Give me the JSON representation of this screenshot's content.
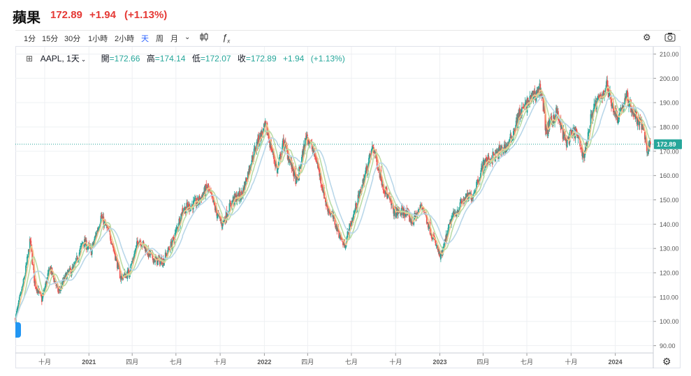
{
  "header": {
    "name": "蘋果",
    "price": "172.89",
    "change": "+1.94",
    "change_pct": "(+1.13%)"
  },
  "toolbar": {
    "timeframes": [
      "1分",
      "15分",
      "30分",
      "1小時",
      "2小時",
      "天",
      "周",
      "月"
    ],
    "active_timeframe": "天",
    "dropdown_icon": "chevron-down-icon",
    "chart_type_icon": "candlestick-icon",
    "indicator_icon": "function-icon",
    "settings_icon": "gear-icon",
    "snapshot_icon": "camera-icon"
  },
  "legend": {
    "symbol": "AAPL, 1天",
    "open_label": "開",
    "open": "=172.66",
    "high_label": "高",
    "high": "=174.14",
    "low_label": "低",
    "low": "=172.07",
    "close_label": "收",
    "close": "=172.89",
    "change": "+1.94",
    "change_pct": "(+1.13%)"
  },
  "colors": {
    "up": "#26a69a",
    "down": "#ef5350",
    "ma_short": "#f2c98f",
    "ma_mid": "#b9dca5",
    "ma_long": "#b9d7e9",
    "last_price_tag": "#26a69a",
    "grid": "#eef0f3"
  },
  "chart_data": {
    "type": "candlestick",
    "symbol": "AAPL",
    "interval": "1天",
    "last_price": 172.89,
    "ylim": [
      87,
      213
    ],
    "y_ticks": [
      "90.00",
      "100.00",
      "110.00",
      "120.00",
      "130.00",
      "140.00",
      "150.00",
      "160.00",
      "170.00",
      "180.00",
      "190.00",
      "200.00",
      "210.00"
    ],
    "x_ticks": [
      "十月",
      "2021",
      "四月",
      "七月",
      "十月",
      "2022",
      "四月",
      "七月",
      "十月",
      "2023",
      "四月",
      "七月",
      "十月",
      "2024"
    ],
    "x_range": [
      "2020-08",
      "2024-03"
    ],
    "price_path": [
      [
        "2020-08-01",
        101
      ],
      [
        "2020-08-20",
        118
      ],
      [
        "2020-09-01",
        133
      ],
      [
        "2020-09-10",
        116
      ],
      [
        "2020-09-25",
        109
      ],
      [
        "2020-10-12",
        122
      ],
      [
        "2020-10-30",
        112
      ],
      [
        "2020-11-15",
        119
      ],
      [
        "2020-12-01",
        122
      ],
      [
        "2020-12-20",
        133
      ],
      [
        "2021-01-06",
        129
      ],
      [
        "2021-01-26",
        143
      ],
      [
        "2021-02-15",
        135
      ],
      [
        "2021-03-08",
        118
      ],
      [
        "2021-03-25",
        120
      ],
      [
        "2021-04-15",
        134
      ],
      [
        "2021-05-05",
        128
      ],
      [
        "2021-05-20",
        125
      ],
      [
        "2021-06-05",
        125
      ],
      [
        "2021-06-25",
        133
      ],
      [
        "2021-07-15",
        146
      ],
      [
        "2021-08-15",
        149
      ],
      [
        "2021-09-05",
        155
      ],
      [
        "2021-09-25",
        144
      ],
      [
        "2021-10-05",
        140
      ],
      [
        "2021-10-28",
        150
      ],
      [
        "2021-11-15",
        152
      ],
      [
        "2021-12-05",
        166
      ],
      [
        "2021-12-20",
        175
      ],
      [
        "2022-01-04",
        180
      ],
      [
        "2022-01-28",
        162
      ],
      [
        "2022-02-10",
        174
      ],
      [
        "2022-03-10",
        157
      ],
      [
        "2022-03-30",
        177
      ],
      [
        "2022-04-20",
        166
      ],
      [
        "2022-05-10",
        148
      ],
      [
        "2022-05-25",
        142
      ],
      [
        "2022-06-16",
        131
      ],
      [
        "2022-07-15",
        150
      ],
      [
        "2022-08-15",
        172
      ],
      [
        "2022-09-05",
        156
      ],
      [
        "2022-09-28",
        145
      ],
      [
        "2022-10-20",
        145
      ],
      [
        "2022-11-05",
        141
      ],
      [
        "2022-11-25",
        148
      ],
      [
        "2022-12-15",
        136
      ],
      [
        "2023-01-03",
        126
      ],
      [
        "2023-01-25",
        142
      ],
      [
        "2023-02-20",
        150
      ],
      [
        "2023-03-10",
        152
      ],
      [
        "2023-04-03",
        165
      ],
      [
        "2023-05-01",
        169
      ],
      [
        "2023-05-25",
        173
      ],
      [
        "2023-06-15",
        185
      ],
      [
        "2023-07-15",
        193
      ],
      [
        "2023-07-31",
        196
      ],
      [
        "2023-08-10",
        178
      ],
      [
        "2023-08-31",
        186
      ],
      [
        "2023-09-20",
        174
      ],
      [
        "2023-10-10",
        178
      ],
      [
        "2023-10-28",
        168
      ],
      [
        "2023-11-15",
        187
      ],
      [
        "2023-12-01",
        192
      ],
      [
        "2023-12-14",
        197
      ],
      [
        "2024-01-04",
        184
      ],
      [
        "2024-01-25",
        192
      ],
      [
        "2024-02-15",
        183
      ],
      [
        "2024-03-01",
        179
      ],
      [
        "2024-03-07",
        170
      ],
      [
        "2024-03-14",
        172.89
      ]
    ]
  }
}
